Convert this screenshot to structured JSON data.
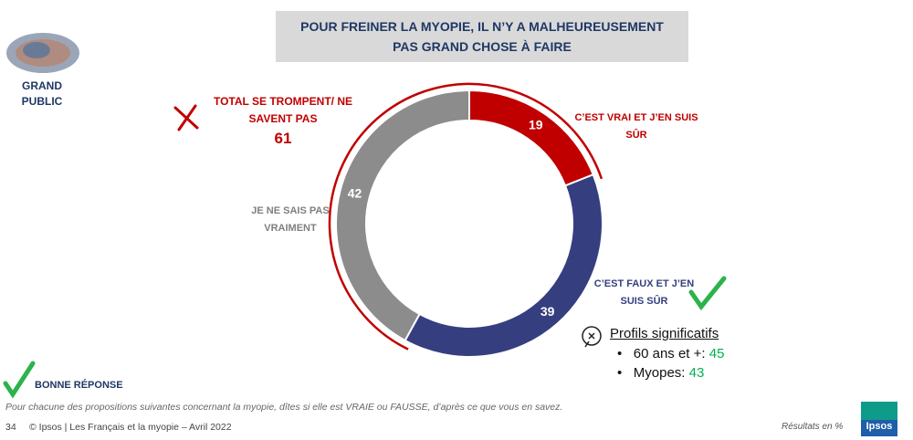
{
  "chart_data": {
    "type": "donut",
    "title": "POUR FREINER LA MYOPIE, IL N’Y A MALHEUREUSEMENT PAS GRAND CHOSE À FAIRE",
    "categories": [
      "C’EST VRAI ET J’EN SUIS SÛR",
      "C’EST FAUX ET J’EN SUIS SÛR",
      "JE NE SAIS PAS VRAIMENT"
    ],
    "values": [
      19,
      39,
      42
    ],
    "colors": [
      "#c00000",
      "#353f7f",
      "#8c8c8c"
    ],
    "annotation": {
      "label": "TOTAL SE TROMPENT/ NE SAVENT PAS",
      "value": 61
    }
  },
  "audience": "GRAND PUBLIC",
  "profiles": {
    "title": "Profils significatifs",
    "items": [
      {
        "label": "60 ans et +:",
        "value": 45
      },
      {
        "label": "Myopes:",
        "value": 43
      }
    ]
  },
  "good_answer": "BONNE RÉPONSE",
  "question": "Pour chacune des propositions suivantes concernant la myopie, dîtes si elle est VRAIE ou FAUSSE, d’après ce que vous en savez.",
  "footer": {
    "page": "34",
    "source": "© Ipsos | Les Français et la myopie – Avril 2022",
    "unit": "Résultats en %",
    "logo": "Ipsos"
  }
}
